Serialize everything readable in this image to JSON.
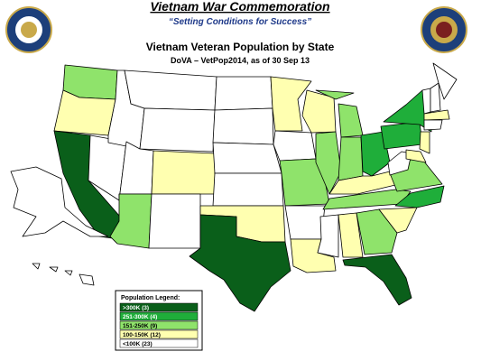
{
  "header": {
    "title": "Vietnam War Commemoration",
    "subtitle": "“Setting Conditions for Success”"
  },
  "map": {
    "title": "Vietnam Veteran Population by State",
    "source": "DoVA – VetPop2014, as of 30 Sep 13",
    "legend": {
      "title": "Population Legend:",
      "items": [
        {
          "label": ">300K (3)",
          "color": "#0a5f1a"
        },
        {
          "label": "251-300K (4)",
          "color": "#1fae3a"
        },
        {
          "label": "151-250K (9)",
          "color": "#8fe36b"
        },
        {
          "label": "100-150K (12)",
          "color": "#ffffb0"
        },
        {
          "label": "<100K (23)",
          "color": "#ffffff"
        }
      ]
    }
  }
}
